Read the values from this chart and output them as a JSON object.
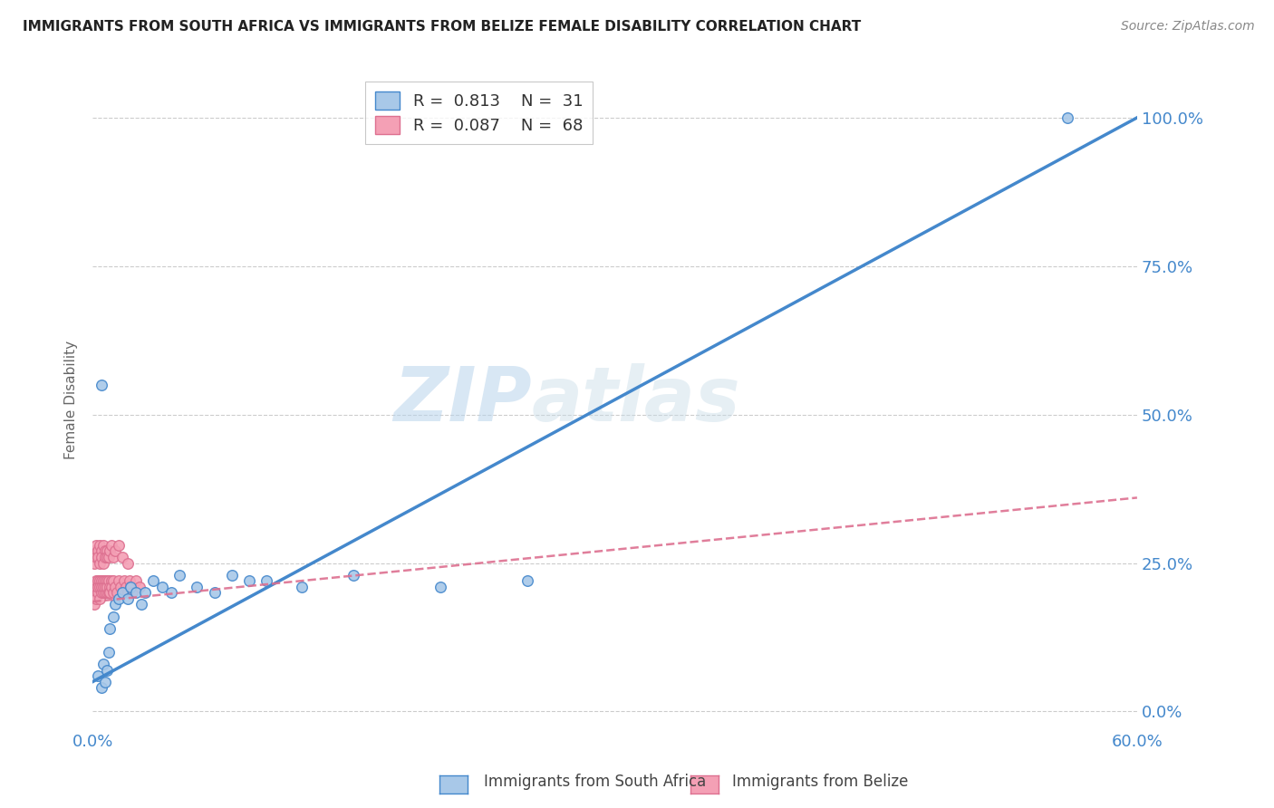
{
  "title": "IMMIGRANTS FROM SOUTH AFRICA VS IMMIGRANTS FROM BELIZE FEMALE DISABILITY CORRELATION CHART",
  "source": "Source: ZipAtlas.com",
  "ylabel": "Female Disability",
  "ytick_labels": [
    "0.0%",
    "25.0%",
    "50.0%",
    "75.0%",
    "100.0%"
  ],
  "ytick_values": [
    0.0,
    0.25,
    0.5,
    0.75,
    1.0
  ],
  "xlim": [
    0.0,
    0.6
  ],
  "ylim": [
    -0.03,
    1.08
  ],
  "color_sa": "#a8c8e8",
  "color_belize": "#f4a0b5",
  "line_sa": "#4488cc",
  "line_belize": "#dd7090",
  "watermark_zip": "ZIP",
  "watermark_atlas": "atlas",
  "sa_line_x0": 0.0,
  "sa_line_y0": 0.05,
  "sa_line_x1": 0.6,
  "sa_line_y1": 1.0,
  "bz_line_x0": 0.0,
  "bz_line_y0": 0.185,
  "bz_line_x1": 0.6,
  "bz_line_y1": 0.36,
  "south_africa_x": [
    0.003,
    0.005,
    0.006,
    0.007,
    0.008,
    0.009,
    0.01,
    0.012,
    0.013,
    0.015,
    0.017,
    0.02,
    0.022,
    0.025,
    0.028,
    0.03,
    0.035,
    0.04,
    0.045,
    0.05,
    0.06,
    0.07,
    0.08,
    0.09,
    0.1,
    0.12,
    0.15,
    0.2,
    0.25,
    0.56,
    0.005
  ],
  "south_africa_y": [
    0.06,
    0.04,
    0.08,
    0.05,
    0.07,
    0.1,
    0.14,
    0.16,
    0.18,
    0.19,
    0.2,
    0.19,
    0.21,
    0.2,
    0.18,
    0.2,
    0.22,
    0.21,
    0.2,
    0.23,
    0.21,
    0.2,
    0.23,
    0.22,
    0.22,
    0.21,
    0.23,
    0.21,
    0.22,
    1.0,
    0.55
  ],
  "belize_x": [
    0.001,
    0.001,
    0.002,
    0.002,
    0.002,
    0.003,
    0.003,
    0.003,
    0.004,
    0.004,
    0.004,
    0.005,
    0.005,
    0.005,
    0.006,
    0.006,
    0.006,
    0.007,
    0.007,
    0.007,
    0.008,
    0.008,
    0.008,
    0.009,
    0.009,
    0.01,
    0.01,
    0.011,
    0.011,
    0.012,
    0.012,
    0.013,
    0.014,
    0.015,
    0.016,
    0.017,
    0.018,
    0.019,
    0.02,
    0.021,
    0.022,
    0.023,
    0.025,
    0.027,
    0.001,
    0.001,
    0.002,
    0.002,
    0.003,
    0.003,
    0.004,
    0.004,
    0.005,
    0.005,
    0.006,
    0.006,
    0.007,
    0.007,
    0.008,
    0.008,
    0.009,
    0.01,
    0.011,
    0.012,
    0.013,
    0.015,
    0.017,
    0.02
  ],
  "belize_y": [
    0.2,
    0.18,
    0.21,
    0.19,
    0.22,
    0.2,
    0.22,
    0.21,
    0.19,
    0.22,
    0.21,
    0.2,
    0.22,
    0.21,
    0.2,
    0.22,
    0.21,
    0.2,
    0.22,
    0.21,
    0.2,
    0.22,
    0.21,
    0.2,
    0.22,
    0.21,
    0.2,
    0.22,
    0.21,
    0.2,
    0.22,
    0.21,
    0.2,
    0.22,
    0.21,
    0.2,
    0.22,
    0.21,
    0.2,
    0.22,
    0.21,
    0.2,
    0.22,
    0.21,
    0.27,
    0.25,
    0.28,
    0.26,
    0.27,
    0.26,
    0.28,
    0.25,
    0.27,
    0.26,
    0.28,
    0.25,
    0.27,
    0.26,
    0.27,
    0.26,
    0.26,
    0.27,
    0.28,
    0.26,
    0.27,
    0.28,
    0.26,
    0.25
  ]
}
